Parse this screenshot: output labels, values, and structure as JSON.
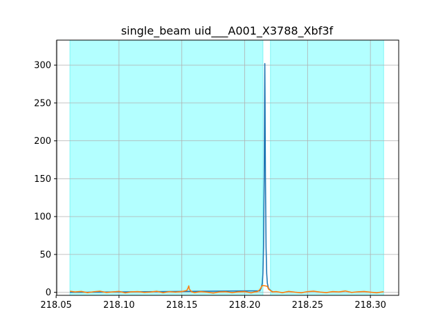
{
  "chart_data": {
    "type": "line",
    "title": "single_beam uid___A001_X3788_Xbf3f",
    "xlabel": "",
    "ylabel": "",
    "xlim": [
      218.0505,
      218.3225
    ],
    "ylim": [
      -4,
      333
    ],
    "grid": true,
    "xticks": [
      218.05,
      218.1,
      218.15,
      218.2,
      218.25,
      218.3
    ],
    "xtick_labels": [
      "218.05",
      "218.10",
      "218.15",
      "218.20",
      "218.25",
      "218.30"
    ],
    "yticks": [
      0,
      50,
      100,
      150,
      200,
      250,
      300
    ],
    "ytick_labels": [
      "0",
      "50",
      "100",
      "150",
      "200",
      "250",
      "300"
    ],
    "shaded_ranges": [
      {
        "x0": 218.061,
        "x1": 218.2145
      },
      {
        "x0": 218.2205,
        "x1": 218.3105
      }
    ],
    "colors": {
      "shade": "#b3ffff",
      "shade_edge": "#7ff5f5",
      "series_model": "#1f77b4",
      "series_residual": "#ff7f0e",
      "grid": "#b0b0b0"
    },
    "series": [
      {
        "x": [
          218.061,
          218.212,
          218.213,
          218.214,
          218.2145,
          218.215,
          218.2155,
          218.2158,
          218.216,
          218.2162,
          218.2165,
          218.217,
          218.2175,
          218.218,
          218.219,
          218.221,
          218.2225
        ],
        "y": [
          0,
          2,
          5,
          12,
          25,
          60,
          150,
          250,
          302,
          250,
          150,
          60,
          25,
          12,
          5,
          2,
          0.5
        ]
      },
      {
        "x": [
          218.061,
          218.065,
          218.07,
          218.075,
          218.08,
          218.085,
          218.09,
          218.095,
          218.1,
          218.105,
          218.11,
          218.115,
          218.12,
          218.125,
          218.13,
          218.135,
          218.14,
          218.145,
          218.15,
          218.154,
          218.155,
          218.1555,
          218.156,
          218.158,
          218.16,
          218.165,
          218.17,
          218.175,
          218.18,
          218.185,
          218.19,
          218.195,
          218.2,
          218.205,
          218.208,
          218.21,
          218.211,
          218.212,
          218.213,
          218.2135,
          218.2145,
          218.218,
          218.2185,
          218.219,
          218.2205,
          218.222,
          218.225,
          218.23,
          218.235,
          218.24,
          218.245,
          218.25,
          218.255,
          218.26,
          218.265,
          218.27,
          218.275,
          218.28,
          218.285,
          218.29,
          218.295,
          218.3,
          218.305,
          218.3105
        ],
        "y": [
          1.5,
          0.5,
          1.2,
          -0.5,
          0.8,
          1.5,
          -0.3,
          0.5,
          1.2,
          -0.8,
          0.6,
          1.0,
          -0.2,
          0.3,
          1.4,
          -0.6,
          0.9,
          0.2,
          1.0,
          2.5,
          6.0,
          8.5,
          4.0,
          0.5,
          -0.5,
          1.0,
          0.2,
          -1.0,
          0.5,
          0.8,
          -0.5,
          0.6,
          1.0,
          -0.8,
          0.5,
          1.0,
          2.0,
          3.5,
          6.0,
          8.0,
          9.0,
          8.0,
          6.0,
          4.0,
          2.5,
          0.5,
          1.0,
          -0.5,
          1.2,
          0.2,
          -0.6,
          0.9,
          1.5,
          0.3,
          -0.4,
          1.0,
          0.5,
          1.8,
          -0.2,
          0.6,
          1.1,
          0.2,
          -0.6,
          0.8
        ]
      }
    ]
  }
}
